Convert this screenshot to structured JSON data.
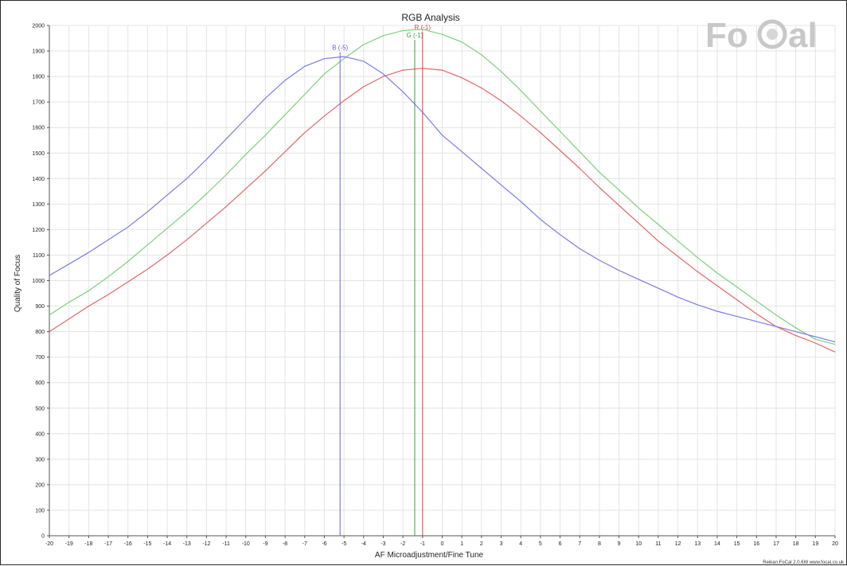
{
  "chart_data": {
    "type": "line",
    "title": "RGB Analysis",
    "xlabel": "AF Microadjustment/Fine Tune",
    "ylabel": "Quality of Focus",
    "xlim": [
      -20,
      20
    ],
    "ylim": [
      0,
      2000
    ],
    "xticks": [
      -20,
      -19,
      -18,
      -17,
      -16,
      -15,
      -14,
      -13,
      -12,
      -11,
      -10,
      -9,
      -8,
      -7,
      -6,
      -5,
      -4,
      -3,
      -2,
      -1,
      0,
      1,
      2,
      3,
      4,
      5,
      6,
      7,
      8,
      9,
      10,
      11,
      12,
      13,
      14,
      15,
      16,
      17,
      18,
      19,
      20
    ],
    "yticks": [
      0,
      100,
      200,
      300,
      400,
      500,
      600,
      700,
      800,
      900,
      1000,
      1100,
      1200,
      1300,
      1400,
      1500,
      1600,
      1700,
      1800,
      1900,
      2000
    ],
    "grid": true,
    "x": [
      -20,
      -19,
      -18,
      -17,
      -16,
      -15,
      -14,
      -13,
      -12,
      -11,
      -10,
      -9,
      -8,
      -7,
      -6,
      -5,
      -4,
      -3,
      -2,
      -1,
      0,
      1,
      2,
      3,
      4,
      5,
      6,
      7,
      8,
      9,
      10,
      11,
      12,
      13,
      14,
      15,
      16,
      17,
      18,
      19,
      20
    ],
    "series": [
      {
        "color": "#e06666",
        "values": [
          800,
          850,
          900,
          945,
          995,
          1045,
          1100,
          1160,
          1225,
          1290,
          1360,
          1430,
          1505,
          1580,
          1645,
          1705,
          1760,
          1800,
          1825,
          1832,
          1825,
          1795,
          1755,
          1705,
          1645,
          1580,
          1510,
          1440,
          1365,
          1295,
          1225,
          1155,
          1095,
          1035,
          980,
          925,
          870,
          820,
          785,
          755,
          720
        ]
      },
      {
        "color": "#7ccf7c",
        "values": [
          865,
          915,
          960,
          1015,
          1075,
          1140,
          1205,
          1270,
          1340,
          1415,
          1495,
          1570,
          1650,
          1730,
          1810,
          1870,
          1925,
          1960,
          1980,
          1985,
          1965,
          1935,
          1885,
          1820,
          1745,
          1665,
          1585,
          1505,
          1425,
          1355,
          1285,
          1220,
          1155,
          1090,
          1030,
          975,
          920,
          865,
          815,
          770,
          750
        ]
      },
      {
        "color": "#7b7be8",
        "values": [
          1020,
          1065,
          1110,
          1160,
          1210,
          1270,
          1335,
          1400,
          1475,
          1555,
          1635,
          1715,
          1785,
          1840,
          1870,
          1878,
          1860,
          1810,
          1740,
          1660,
          1570,
          1505,
          1440,
          1375,
          1310,
          1240,
          1180,
          1125,
          1080,
          1040,
          1005,
          970,
          935,
          905,
          880,
          860,
          840,
          820,
          800,
          780,
          760
        ]
      }
    ],
    "markers": [
      {
        "label": "B (-5)",
        "x": -5.2,
        "color": "#6666dd",
        "labelY": 1905
      },
      {
        "label": "G (-1)",
        "x": -1.4,
        "color": "#449944",
        "labelY": 1953
      },
      {
        "label": "R (-1)",
        "x": -1.0,
        "color": "#dd4444",
        "labelY": 1985
      }
    ]
  },
  "logo": {
    "text_left": "Fo",
    "text_right": "al"
  },
  "footer": "Reikan FoCal 2.0.6W  www.focal.co.uk"
}
